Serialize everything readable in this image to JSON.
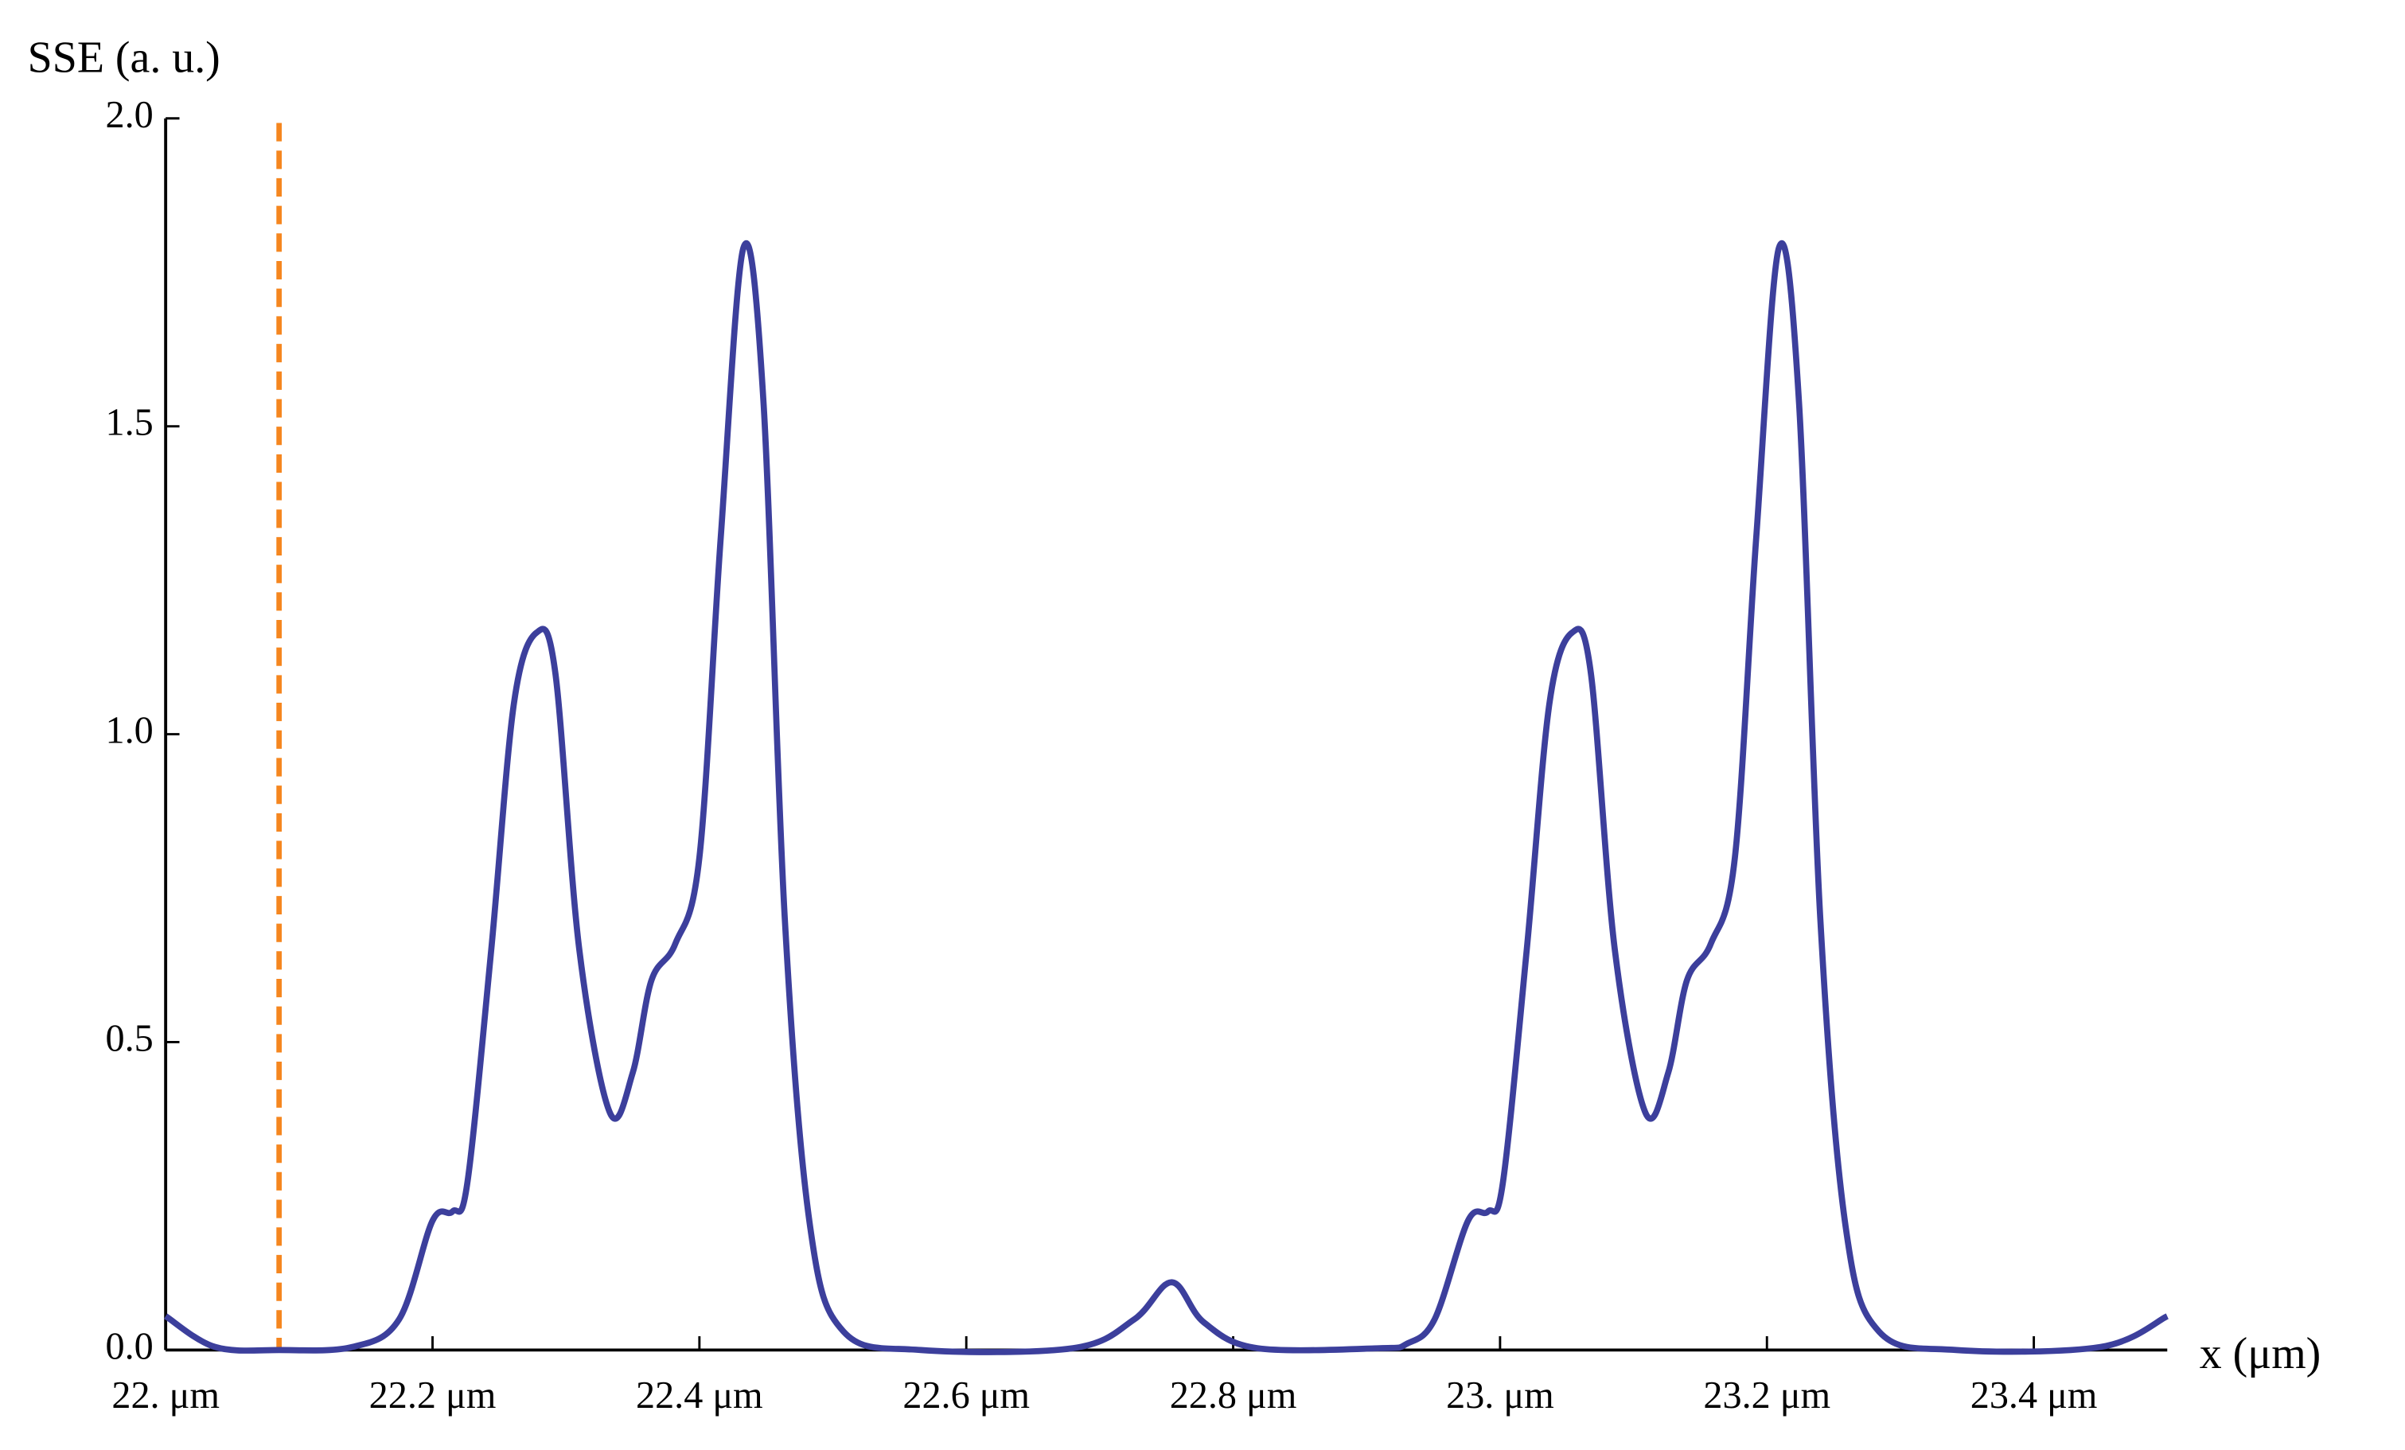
{
  "chart_data": {
    "type": "line",
    "x_label": "x (μm)",
    "y_label": "SSE (a. u.)",
    "xlim": [
      22,
      23.5
    ],
    "ylim": [
      0,
      2
    ],
    "xticks": [
      {
        "value": 22,
        "label": "22. μm"
      },
      {
        "value": 22.2,
        "label": "22.2 μm"
      },
      {
        "value": 22.4,
        "label": "22.4 μm"
      },
      {
        "value": 22.6,
        "label": "22.6 μm"
      },
      {
        "value": 22.8,
        "label": "22.8 μm"
      },
      {
        "value": 23,
        "label": "23. μm"
      },
      {
        "value": 23.2,
        "label": "23.2 μm"
      },
      {
        "value": 23.4,
        "label": "23.4 μm"
      }
    ],
    "yticks": [
      {
        "value": 0,
        "label": "0.0"
      },
      0.5,
      {
        "value": 1,
        "label": "1.0"
      },
      1.5,
      {
        "value": 2,
        "label": "2.0"
      }
    ],
    "reference_line_x": 22.085,
    "reference_line_color": "#f5861f",
    "series": [
      {
        "color": "#3c3f9c",
        "x": [
          22.0,
          22.037,
          22.085,
          22.14,
          22.175,
          22.2,
          22.215,
          22.226,
          22.244,
          22.261,
          22.278,
          22.292,
          22.31,
          22.333,
          22.35,
          22.364,
          22.382,
          22.4,
          22.416,
          22.433,
          22.448,
          22.464,
          22.483,
          22.508,
          22.566,
          22.68,
          22.726,
          22.754,
          22.778,
          22.818,
          22.91,
          22.93,
          22.951,
          22.976,
          22.991,
          23.002,
          23.02,
          23.037,
          23.054,
          23.068,
          23.086,
          23.109,
          23.126,
          23.14,
          23.158,
          23.176,
          23.192,
          23.209,
          23.224,
          23.24,
          23.259,
          23.284,
          23.342,
          23.45,
          23.5
        ],
        "values": [
          0.055,
          0.005,
          0.0,
          0.005,
          0.05,
          0.21,
          0.225,
          0.27,
          0.65,
          1.05,
          1.165,
          1.1,
          0.65,
          0.385,
          0.45,
          0.6,
          0.66,
          0.8,
          1.32,
          1.79,
          1.54,
          0.7,
          0.2,
          0.03,
          0.0,
          0.003,
          0.05,
          0.11,
          0.045,
          0.003,
          0.003,
          0.01,
          0.05,
          0.21,
          0.225,
          0.27,
          0.65,
          1.05,
          1.165,
          1.1,
          0.65,
          0.385,
          0.45,
          0.6,
          0.66,
          0.8,
          1.32,
          1.79,
          1.54,
          0.7,
          0.2,
          0.03,
          0.0,
          0.005,
          0.055
        ]
      }
    ]
  }
}
